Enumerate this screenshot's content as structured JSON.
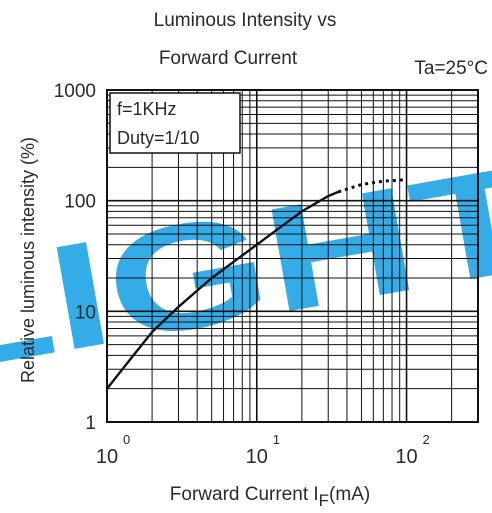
{
  "watermark": {
    "text": "LIGHT",
    "color": "#1ea3e6"
  },
  "chart_data": {
    "type": "line",
    "title": [
      "Luminous Intensity vs",
      "Forward Current"
    ],
    "condition": "Ta=25°C",
    "xlabel": "Forward Current I",
    "xlabel_sub": "F",
    "xlabel_unit": "(mA)",
    "ylabel": "Relative luminous intensity   (%)",
    "x_scale": "log",
    "y_scale": "log",
    "xlim": [
      1,
      300
    ],
    "ylim": [
      1,
      1000
    ],
    "x_ticks": [
      {
        "value": 1,
        "base": "10",
        "exp": "0"
      },
      {
        "value": 10,
        "base": "10",
        "exp": "1"
      },
      {
        "value": 100,
        "base": "10",
        "exp": "2"
      }
    ],
    "y_ticks": [
      {
        "value": 1,
        "label": "1"
      },
      {
        "value": 10,
        "label": "10"
      },
      {
        "value": 100,
        "label": "100"
      },
      {
        "value": 1000,
        "label": "1000"
      }
    ],
    "legend_box": [
      "f=1KHz",
      "Duty=1/10"
    ],
    "grid": true,
    "series": [
      {
        "style": "solid",
        "x": [
          1,
          1.5,
          2,
          3,
          5,
          7,
          10,
          15,
          20,
          30,
          35
        ],
        "y": [
          2,
          4,
          6.5,
          11,
          20,
          28,
          40,
          60,
          80,
          110,
          120
        ]
      },
      {
        "style": "dotted",
        "x": [
          35,
          50,
          70,
          100
        ],
        "y": [
          120,
          140,
          150,
          155
        ]
      }
    ],
    "line_color": "#111111",
    "grid_color": "#111111"
  }
}
